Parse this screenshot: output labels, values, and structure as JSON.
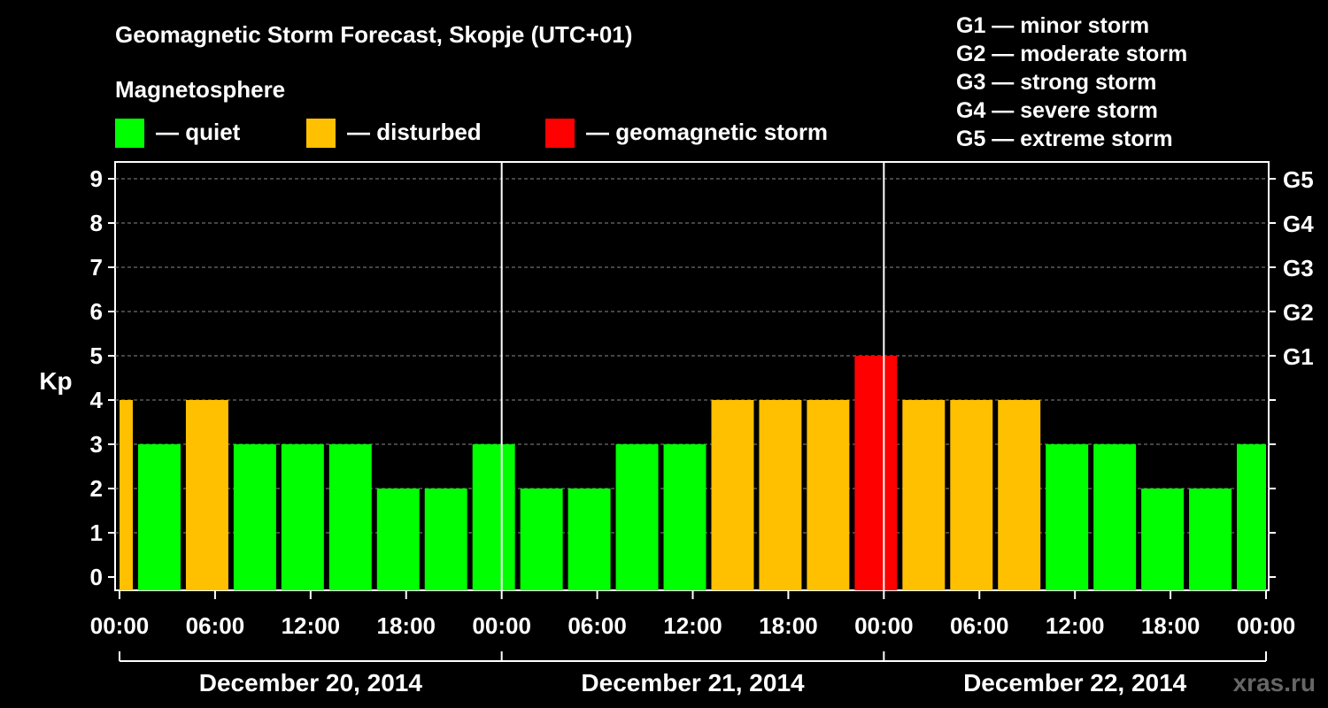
{
  "title": "Geomagnetic Storm Forecast, Skopje (UTC+01)",
  "legend": {
    "heading": "Magnetosphere",
    "items": [
      {
        "label": "— quiet",
        "color": "#00ff00"
      },
      {
        "label": "— disturbed",
        "color": "#ffc000"
      },
      {
        "label": "— geomagnetic storm",
        "color": "#ff0000"
      }
    ]
  },
  "storm_scale": [
    "G1 — minor storm",
    "G2 — moderate storm",
    "G3 — strong storm",
    "G4 — severe storm",
    "G5 — extreme storm"
  ],
  "watermark": "xras.ru",
  "chart_data": {
    "type": "bar",
    "ylabel": "Kp",
    "ylim": [
      0,
      9
    ],
    "yticks": [
      "0",
      "1",
      "2",
      "3",
      "4",
      "5",
      "6",
      "7",
      "8",
      "9"
    ],
    "right_ticks": [
      {
        "kp": 5,
        "label": "G1"
      },
      {
        "kp": 6,
        "label": "G2"
      },
      {
        "kp": 7,
        "label": "G3"
      },
      {
        "kp": 8,
        "label": "G4"
      },
      {
        "kp": 9,
        "label": "G5"
      }
    ],
    "grid": "horizontal dashed",
    "x_tick_labels": [
      "00:00",
      "06:00",
      "12:00",
      "18:00",
      "00:00",
      "06:00",
      "12:00",
      "18:00",
      "00:00",
      "06:00",
      "12:00",
      "18:00",
      "00:00"
    ],
    "dates": [
      "December 20, 2014",
      "December 21, 2014",
      "December 22, 2014"
    ],
    "x_range_hours": [
      0,
      72
    ],
    "bars": [
      {
        "start": 0,
        "end": 1,
        "kp": 4
      },
      {
        "start": 1,
        "end": 4,
        "kp": 3
      },
      {
        "start": 4,
        "end": 7,
        "kp": 4
      },
      {
        "start": 7,
        "end": 10,
        "kp": 3
      },
      {
        "start": 10,
        "end": 13,
        "kp": 3
      },
      {
        "start": 13,
        "end": 16,
        "kp": 3
      },
      {
        "start": 16,
        "end": 19,
        "kp": 2
      },
      {
        "start": 19,
        "end": 22,
        "kp": 2
      },
      {
        "start": 22,
        "end": 25,
        "kp": 3
      },
      {
        "start": 25,
        "end": 28,
        "kp": 2
      },
      {
        "start": 28,
        "end": 31,
        "kp": 2
      },
      {
        "start": 31,
        "end": 34,
        "kp": 3
      },
      {
        "start": 34,
        "end": 37,
        "kp": 3
      },
      {
        "start": 37,
        "end": 40,
        "kp": 4
      },
      {
        "start": 40,
        "end": 43,
        "kp": 4
      },
      {
        "start": 43,
        "end": 46,
        "kp": 4
      },
      {
        "start": 46,
        "end": 49,
        "kp": 5
      },
      {
        "start": 49,
        "end": 52,
        "kp": 4
      },
      {
        "start": 52,
        "end": 55,
        "kp": 4
      },
      {
        "start": 55,
        "end": 58,
        "kp": 4
      },
      {
        "start": 58,
        "end": 61,
        "kp": 3
      },
      {
        "start": 61,
        "end": 64,
        "kp": 3
      },
      {
        "start": 64,
        "end": 67,
        "kp": 2
      },
      {
        "start": 67,
        "end": 70,
        "kp": 2
      },
      {
        "start": 70,
        "end": 72,
        "kp": 3
      }
    ]
  }
}
